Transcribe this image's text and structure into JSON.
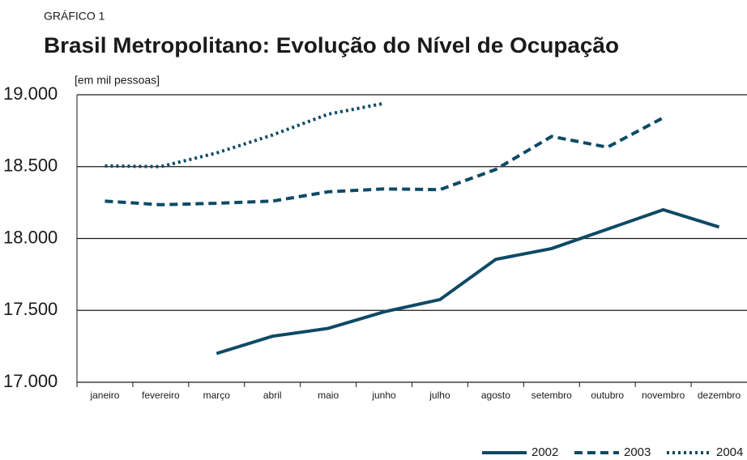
{
  "chart_data": {
    "type": "line",
    "label": "GRÁFICO 1",
    "title": "Brasil Metropolitano: Evolução do Nível de Ocupação",
    "ylabel": "[em mil pessoas]",
    "categories": [
      "janeiro",
      "fevereiro",
      "março",
      "abril",
      "maio",
      "junho",
      "julho",
      "agosto",
      "setembro",
      "outubro",
      "novembro",
      "dezembro"
    ],
    "series": [
      {
        "name": "2002",
        "color": "#0e4a66",
        "style": "solid",
        "values": [
          null,
          null,
          17200,
          17320,
          17375,
          17490,
          17575,
          17855,
          17930,
          18065,
          18200,
          18080
        ]
      },
      {
        "name": "2003",
        "color": "#0e4a66",
        "style": "dashed",
        "values": [
          18260,
          18235,
          18245,
          18260,
          18325,
          18345,
          18340,
          18480,
          18710,
          18635,
          18840,
          null
        ]
      },
      {
        "name": "2004",
        "color": "#0e4a66",
        "style": "dotted",
        "values": [
          18505,
          18500,
          18595,
          18720,
          18865,
          18940,
          null,
          null,
          null,
          null,
          null,
          null
        ]
      }
    ],
    "ylim": [
      17000,
      19000
    ],
    "yticks": [
      {
        "value": 17000,
        "label": "17.000"
      },
      {
        "value": 17500,
        "label": "17.500"
      },
      {
        "value": 18000,
        "label": "18.000"
      },
      {
        "value": 18500,
        "label": "18.500"
      },
      {
        "value": 19000,
        "label": "19.000"
      }
    ],
    "grid": true,
    "legend": "bottom-right"
  }
}
